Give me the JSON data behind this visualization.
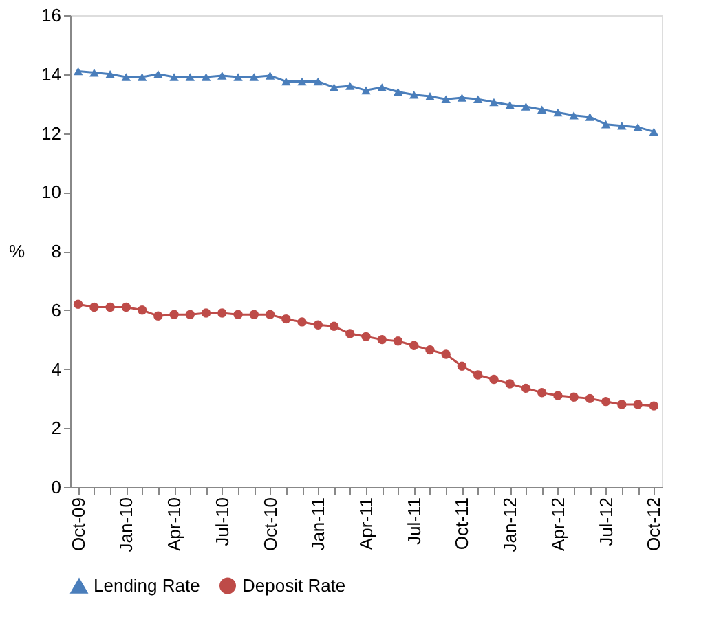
{
  "chart_data": {
    "type": "line",
    "ylabel": "%",
    "categories": [
      "Oct-09",
      null,
      null,
      "Jan-10",
      null,
      null,
      "Apr-10",
      null,
      null,
      "Jul-10",
      null,
      null,
      "Oct-10",
      null,
      null,
      "Jan-11",
      null,
      null,
      "Apr-11",
      null,
      null,
      "Jul-11",
      null,
      null,
      "Oct-11",
      null,
      null,
      "Jan-12",
      null,
      null,
      "Apr-12",
      null,
      null,
      "Jul-12",
      null,
      null,
      "Oct-12"
    ],
    "series": [
      {
        "name": "Lending Rate",
        "color": "#4a7ebb",
        "marker": "triangle",
        "values": [
          14.1,
          14.05,
          14.0,
          13.9,
          13.9,
          14.0,
          13.9,
          13.9,
          13.9,
          13.95,
          13.9,
          13.9,
          13.95,
          13.75,
          13.75,
          13.75,
          13.55,
          13.6,
          13.45,
          13.55,
          13.4,
          13.3,
          13.25,
          13.15,
          13.2,
          13.15,
          13.05,
          12.95,
          12.9,
          12.8,
          12.7,
          12.6,
          12.55,
          12.3,
          12.25,
          12.2,
          12.05
        ]
      },
      {
        "name": "Deposit Rate",
        "color": "#be4b48",
        "marker": "circle",
        "values": [
          6.2,
          6.1,
          6.1,
          6.1,
          6.0,
          5.8,
          5.85,
          5.85,
          5.9,
          5.9,
          5.85,
          5.85,
          5.85,
          5.7,
          5.6,
          5.5,
          5.45,
          5.2,
          5.1,
          5.0,
          4.95,
          4.8,
          4.65,
          4.5,
          4.1,
          3.8,
          3.65,
          3.5,
          3.35,
          3.2,
          3.1,
          3.05,
          3.0,
          2.9,
          2.8,
          2.8,
          2.75
        ]
      }
    ],
    "ylim": [
      0,
      16
    ],
    "yticks": [
      0,
      2,
      4,
      6,
      8,
      10,
      12,
      14,
      16
    ],
    "grid": false,
    "legend": "bottom"
  }
}
